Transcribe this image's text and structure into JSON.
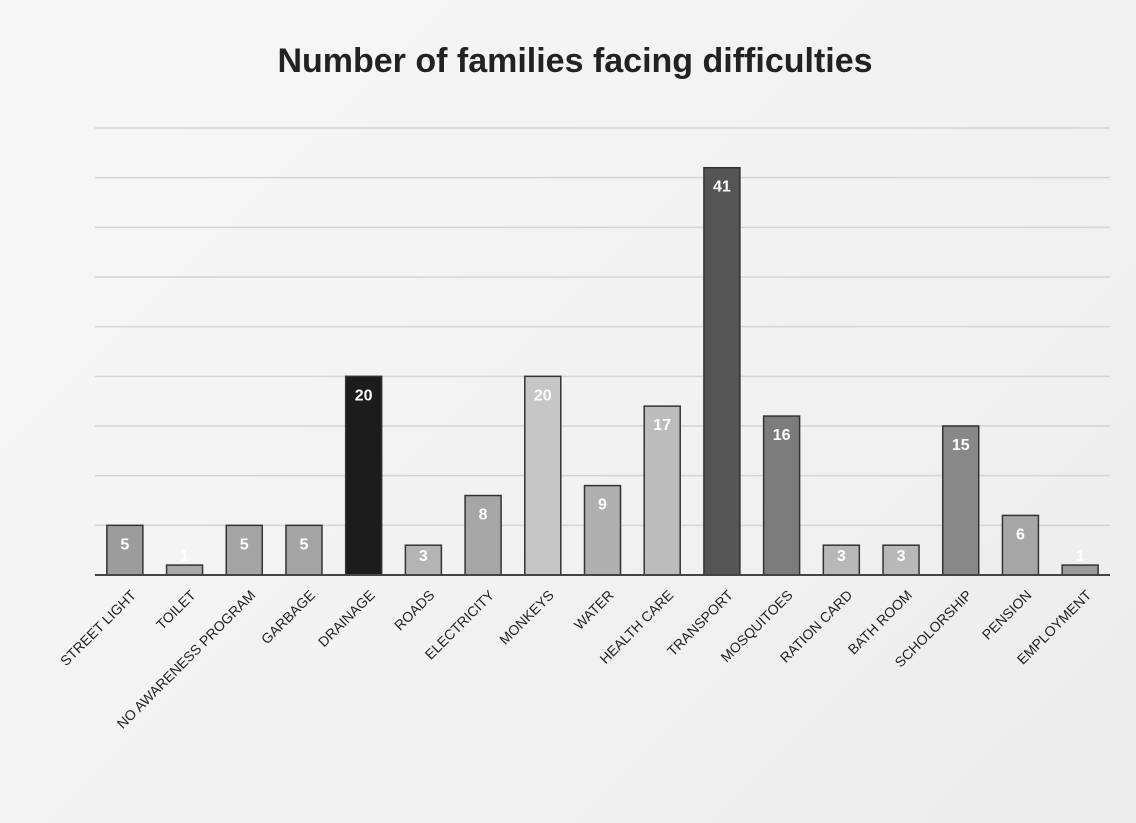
{
  "chart_data": {
    "type": "bar",
    "title": "Number of families facing difficulties",
    "xlabel": "",
    "ylabel": "",
    "ylim": [
      0,
      45
    ],
    "grid": true,
    "legend": "none",
    "categories": [
      "STREET LIGHT",
      "TOILET",
      "NO AWARENESS PROGRAM",
      "GARBAGE",
      "DRAINAGE",
      "ROADS",
      "ELECTRICITY",
      "MONKEYS",
      "WATER",
      "HEALTH CARE",
      "TRANSPORT",
      "MOSQUITOES",
      "RATION CARD",
      "BATH ROOM",
      "SCHOLORSHIP",
      "PENSION",
      "EMPLOYMENT"
    ],
    "values": [
      5,
      1,
      5,
      5,
      20,
      3,
      8,
      20,
      9,
      17,
      41,
      16,
      3,
      3,
      15,
      6,
      1
    ],
    "bar_colors": [
      "#9c9c9c",
      "#a8a8a8",
      "#a4a4a4",
      "#a4a4a4",
      "#1c1c1c",
      "#b4b4b4",
      "#a6a6a6",
      "#c6c6c6",
      "#b0b0b0",
      "#bcbcbc",
      "#555555",
      "#7c7c7c",
      "#b8b8b8",
      "#b8b8b8",
      "#888888",
      "#a6a6a6",
      "#9a9a9a"
    ]
  }
}
